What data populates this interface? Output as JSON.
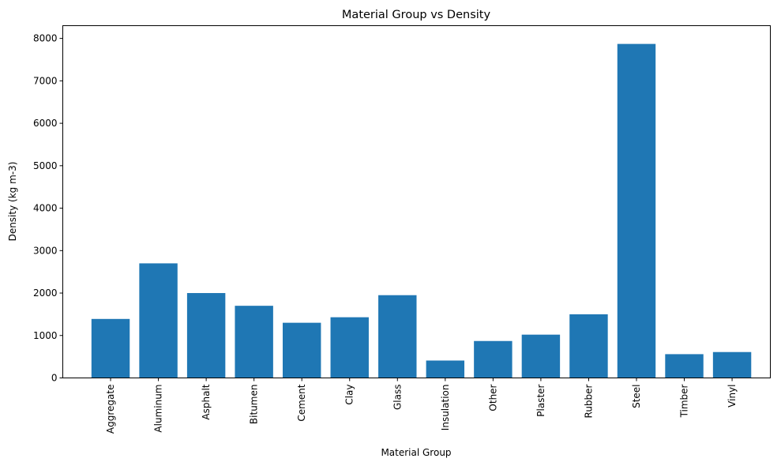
{
  "chart_data": {
    "type": "bar",
    "title": "Material Group vs Density",
    "xlabel": "Material Group",
    "ylabel": "Density (kg m-3)",
    "categories": [
      "Aggregate",
      "Aluminum",
      "Asphalt",
      "Bitumen",
      "Cement",
      "Clay",
      "Glass",
      "Insulation",
      "Other",
      "Plaster",
      "Rubber",
      "Steel",
      "Timber",
      "Vinyl"
    ],
    "values": [
      1390,
      2700,
      2000,
      1700,
      1300,
      1430,
      1950,
      410,
      870,
      1020,
      1500,
      7870,
      560,
      610
    ],
    "ylim": [
      0,
      8300
    ],
    "yticks": [
      "0",
      "1000",
      "2000",
      "3000",
      "4000",
      "5000",
      "6000",
      "7000",
      "8000"
    ],
    "bar_color": "#1f77b4",
    "grid": false,
    "legend": "none"
  }
}
